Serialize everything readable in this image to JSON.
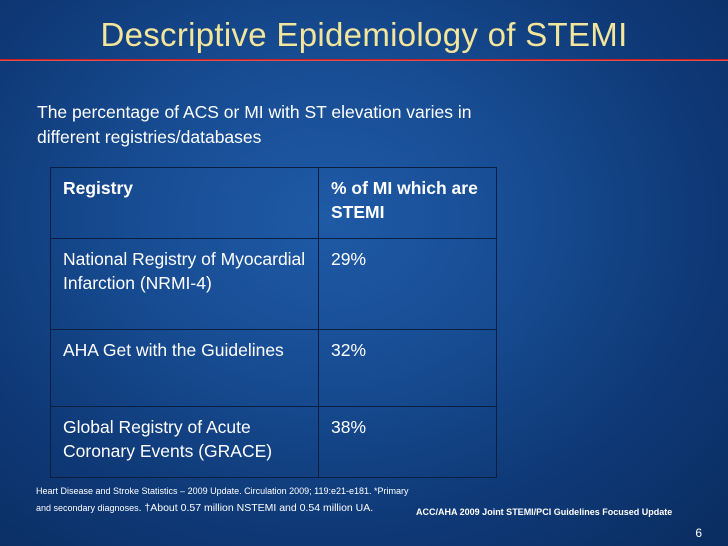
{
  "slide": {
    "title": "Descriptive Epidemiology of STEMI",
    "intro_line1": "The percentage of ACS or MI with ST elevation varies in",
    "intro_line2": "different registries/databases",
    "table": {
      "headers": [
        "Registry",
        "% of MI which are STEMI"
      ],
      "rows": [
        {
          "registry": "National Registry of Myocardial Infarction (NRMI-4)",
          "percent": "29%"
        },
        {
          "registry": "AHA Get with the Guidelines",
          "percent": "32%"
        },
        {
          "registry": "Global Registry of Acute Coronary Events (GRACE)",
          "percent": "38%"
        }
      ]
    },
    "footnote_line1": "Heart Disease and Stroke Statistics – 2009 Update. Circulation 2009; 119:e21-e181. *Primary",
    "footnote_line2a": "and secondary diagnoses",
    "footnote_line2b": ". †About 0.57 million NSTEMI and 0.54 million UA.",
    "source": "ACC/AHA 2009 Joint STEMI/PCI Guidelines Focused Update",
    "page_number": "6"
  },
  "colors": {
    "title": "#f3e59a",
    "rule": "#c81e1e",
    "background": "#174c92",
    "text": "#ffffff"
  }
}
